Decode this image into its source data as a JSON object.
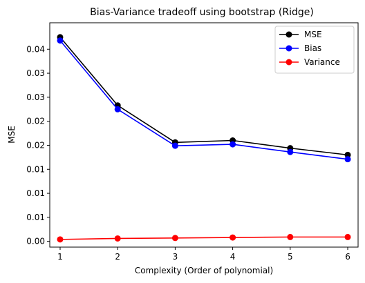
{
  "chart_data": {
    "type": "line",
    "title": "Bias-Variance tradeoff using bootstrap (Ridge)",
    "xlabel": "Complexity (Order of polynomial)",
    "ylabel": "MSE",
    "x": [
      1,
      2,
      3,
      4,
      5,
      6
    ],
    "xlim": [
      0.82,
      6.18
    ],
    "ylim": [
      -0.0012,
      0.0455
    ],
    "x_ticks": [
      1,
      2,
      3,
      4,
      5,
      6
    ],
    "y_ticks": [
      0,
      0.005,
      0.01,
      0.015,
      0.02,
      0.025,
      0.03,
      0.035,
      0.04
    ],
    "y_tick_labels": [
      "0.00",
      "0.01",
      "0.01",
      "0.01",
      "0.02",
      "0.02",
      "0.03",
      "0.03",
      "0.04"
    ],
    "grid": false,
    "legend_position": "top-right",
    "series": [
      {
        "name": "MSE",
        "color": "#000000",
        "values": [
          0.0425,
          0.0283,
          0.0206,
          0.021,
          0.0194,
          0.018
        ]
      },
      {
        "name": "Bias",
        "color": "#0000ff",
        "values": [
          0.0418,
          0.0275,
          0.0199,
          0.0202,
          0.0186,
          0.0171
        ]
      },
      {
        "name": "Variance",
        "color": "#ff0000",
        "values": [
          0.0004,
          0.0006,
          0.0007,
          0.0008,
          0.0009,
          0.0009
        ]
      }
    ]
  }
}
